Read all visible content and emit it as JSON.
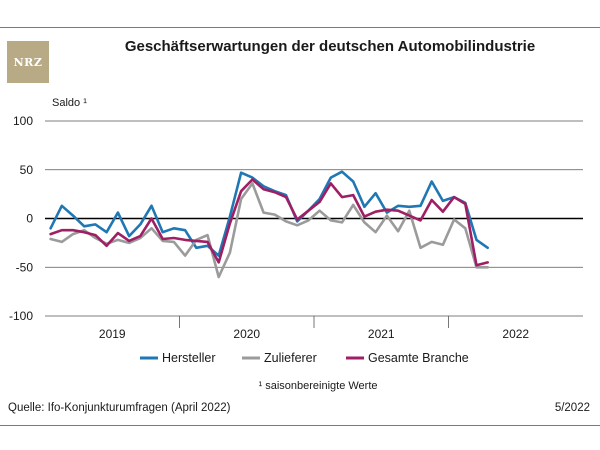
{
  "header": {
    "logo_text": "NRZ",
    "title": "Geschäftserwartungen der deutschen Automobilindustrie"
  },
  "footer": {
    "source": "Quelle: Ifo-Konjunkturumfragen (April 2022)",
    "issue": "5/2022"
  },
  "colors": {
    "hersteller": "#1f77b4",
    "zulieferer": "#9b9b9b",
    "gesamt": "#9e1f63",
    "logo": "#b9aa86"
  },
  "chart_data": {
    "type": "line",
    "title": "Geschäftserwartungen der deutschen Automobilindustrie",
    "ylabel": "Saldo ¹",
    "ylim": [
      -100,
      100
    ],
    "yticks": [
      100,
      50,
      0,
      -50,
      -100
    ],
    "ytick_labels": [
      "100",
      "50",
      "0",
      "-50",
      "-100"
    ],
    "xlim": [
      0,
      48
    ],
    "x_groups": [
      {
        "label": "2019",
        "start": 0,
        "end": 12
      },
      {
        "label": "2020",
        "start": 12,
        "end": 24
      },
      {
        "label": "2021",
        "start": 24,
        "end": 36
      },
      {
        "label": "2022",
        "start": 36,
        "end": 48
      }
    ],
    "x": [
      0.5,
      1.5,
      2.5,
      3.5,
      4.5,
      5.5,
      6.5,
      7.5,
      8.5,
      9.5,
      10.5,
      11.5,
      12.5,
      13.5,
      14.5,
      15.5,
      16.5,
      17.5,
      18.5,
      19.5,
      20.5,
      21.5,
      22.5,
      23.5,
      24.5,
      25.5,
      26.5,
      27.5,
      28.5,
      29.5,
      30.5,
      31.5,
      32.5,
      33.5,
      34.5,
      35.5,
      36.5,
      37.5,
      38.5,
      39.5
    ],
    "series": [
      {
        "name": "Hersteller",
        "color_key": "hersteller",
        "values": [
          -10,
          13,
          3,
          -8,
          -6,
          -14,
          6,
          -18,
          -6,
          13,
          -14,
          -10,
          -12,
          -30,
          -28,
          -38,
          2,
          47,
          42,
          33,
          28,
          24,
          -3,
          8,
          20,
          42,
          48,
          38,
          12,
          26,
          6,
          13,
          12,
          13,
          38,
          18,
          22,
          16,
          -22,
          -30
        ]
      },
      {
        "name": "Zulieferer",
        "color_key": "zulieferer",
        "values": [
          -21,
          -24,
          -16,
          -12,
          -20,
          -26,
          -22,
          -25,
          -20,
          -10,
          -23,
          -24,
          -38,
          -22,
          -17,
          -60,
          -35,
          20,
          36,
          6,
          4,
          -3,
          -7,
          -2,
          8,
          -2,
          -4,
          14,
          -4,
          -14,
          3,
          -13,
          8,
          -30,
          -24,
          -27,
          -1,
          -10,
          -50,
          -50
        ]
      },
      {
        "name": "Gesamte Branche",
        "color_key": "gesamt",
        "values": [
          -16,
          -12,
          -12,
          -14,
          -17,
          -28,
          -15,
          -23,
          -18,
          0,
          -21,
          -20,
          -22,
          -23,
          -24,
          -45,
          -5,
          28,
          40,
          30,
          27,
          22,
          -1,
          8,
          17,
          36,
          22,
          24,
          2,
          7,
          9,
          8,
          3,
          -2,
          19,
          7,
          22,
          15,
          -48,
          -45
        ]
      }
    ],
    "legend": {
      "position": "bottom",
      "items": [
        "Hersteller",
        "Zulieferer",
        "Gesamte Branche"
      ]
    },
    "footnote": "¹ saisonbereinigte Werte",
    "grid": true
  }
}
